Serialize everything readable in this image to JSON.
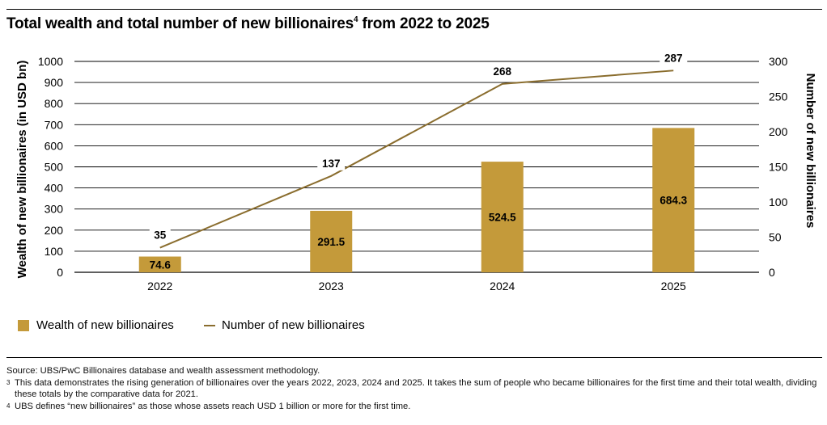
{
  "title": "Total wealth and total number of new billionaires",
  "title_sup": "4",
  "title_suffix": " from 2022 to 2025",
  "chart_data": {
    "type": "bar",
    "categories": [
      "2022",
      "2023",
      "2024",
      "2025"
    ],
    "series": [
      {
        "name": "Wealth of new billionaires",
        "type": "bar",
        "axis": "left",
        "values": [
          74.6,
          291.5,
          524.5,
          684.3
        ],
        "color": "#c49a3a"
      },
      {
        "name": "Number of new billionaires",
        "type": "line",
        "axis": "right",
        "values": [
          35,
          137,
          268,
          287
        ],
        "color": "#8a6d2e"
      }
    ],
    "ylabel": "Wealth of new billionaires (in USD bn)",
    "y2label": "Number of new billionaires",
    "ylim": [
      0,
      1000
    ],
    "y2lim": [
      0,
      300
    ],
    "yticks": [
      0,
      100,
      200,
      300,
      400,
      500,
      600,
      700,
      800,
      900,
      1000
    ],
    "y2ticks": [
      0,
      50,
      100,
      150,
      200,
      250,
      300
    ],
    "grid": true,
    "legend": "bottom-left"
  },
  "legend": {
    "bar_label": "Wealth of new billionaires",
    "line_label": "Number of new billionaires"
  },
  "notes": {
    "source": "Source: UBS/PwC Billionaires database and wealth assessment methodology.",
    "fn3_mark": "3",
    "fn3_text": "This data demonstrates the rising generation of billionaires over the years 2022, 2023, 2024 and 2025. It takes the sum of people who became billionaires for the first time and their total wealth, dividing these totals by the comparative data for 2021.",
    "fn4_mark": "4",
    "fn4_text": "UBS defines “new billionaires” as those whose assets reach USD 1 billion or more for the first time."
  }
}
